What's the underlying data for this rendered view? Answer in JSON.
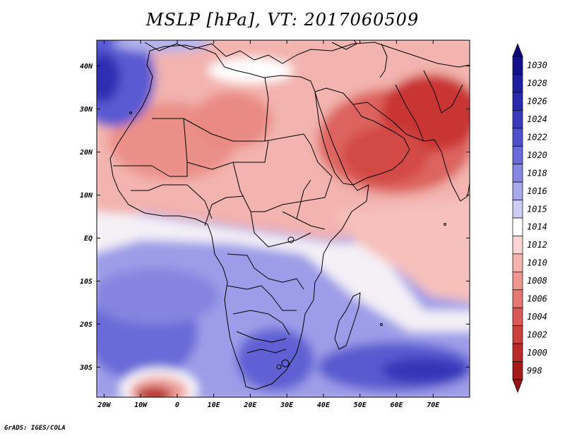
{
  "title": "MSLP [hPa], VT: 2017060509",
  "footer": "GrADS: IGES/COLA",
  "map": {
    "lon_range": [
      -22,
      80
    ],
    "lat_range": [
      -37,
      46
    ],
    "lat_ticks": [
      {
        "value": 40,
        "label": "40N"
      },
      {
        "value": 30,
        "label": "30N"
      },
      {
        "value": 20,
        "label": "20N"
      },
      {
        "value": 10,
        "label": "10N"
      },
      {
        "value": 0,
        "label": "EQ"
      },
      {
        "value": -10,
        "label": "10S"
      },
      {
        "value": -20,
        "label": "20S"
      },
      {
        "value": -30,
        "label": "30S"
      }
    ],
    "lon_ticks": [
      {
        "value": -20,
        "label": "20W"
      },
      {
        "value": -10,
        "label": "10W"
      },
      {
        "value": 0,
        "label": "0"
      },
      {
        "value": 10,
        "label": "10E"
      },
      {
        "value": 20,
        "label": "20E"
      },
      {
        "value": 30,
        "label": "30E"
      },
      {
        "value": 40,
        "label": "40E"
      },
      {
        "value": 50,
        "label": "50E"
      },
      {
        "value": 60,
        "label": "60E"
      },
      {
        "value": 70,
        "label": "70E"
      }
    ]
  },
  "colorbar": {
    "levels": [
      {
        "label": "1030",
        "color": "#14108c"
      },
      {
        "label": "1028",
        "color": "#1e1ea0"
      },
      {
        "label": "1026",
        "color": "#2a2aaf"
      },
      {
        "label": "1024",
        "color": "#3a3abe"
      },
      {
        "label": "1022",
        "color": "#5050cc"
      },
      {
        "label": "1020",
        "color": "#6a6ad8"
      },
      {
        "label": "1018",
        "color": "#8787e2"
      },
      {
        "label": "1016",
        "color": "#a8a8ec"
      },
      {
        "label": "1015",
        "color": "#ccccf5"
      },
      {
        "label": "1014",
        "color": "#ffffff"
      },
      {
        "label": "1012",
        "color": "#fcd6d4"
      },
      {
        "label": "1010",
        "color": "#f6b4b0"
      },
      {
        "label": "1008",
        "color": "#ee9792"
      },
      {
        "label": "1006",
        "color": "#e57872"
      },
      {
        "label": "1004",
        "color": "#d95a55"
      },
      {
        "label": "1002",
        "color": "#cc403c"
      },
      {
        "label": "1000",
        "color": "#ba2a28"
      },
      {
        "label": "998",
        "color": "#a61a1a"
      }
    ],
    "top_arrow_color": "#0c0878",
    "bottom_arrow_color": "#961414"
  }
}
